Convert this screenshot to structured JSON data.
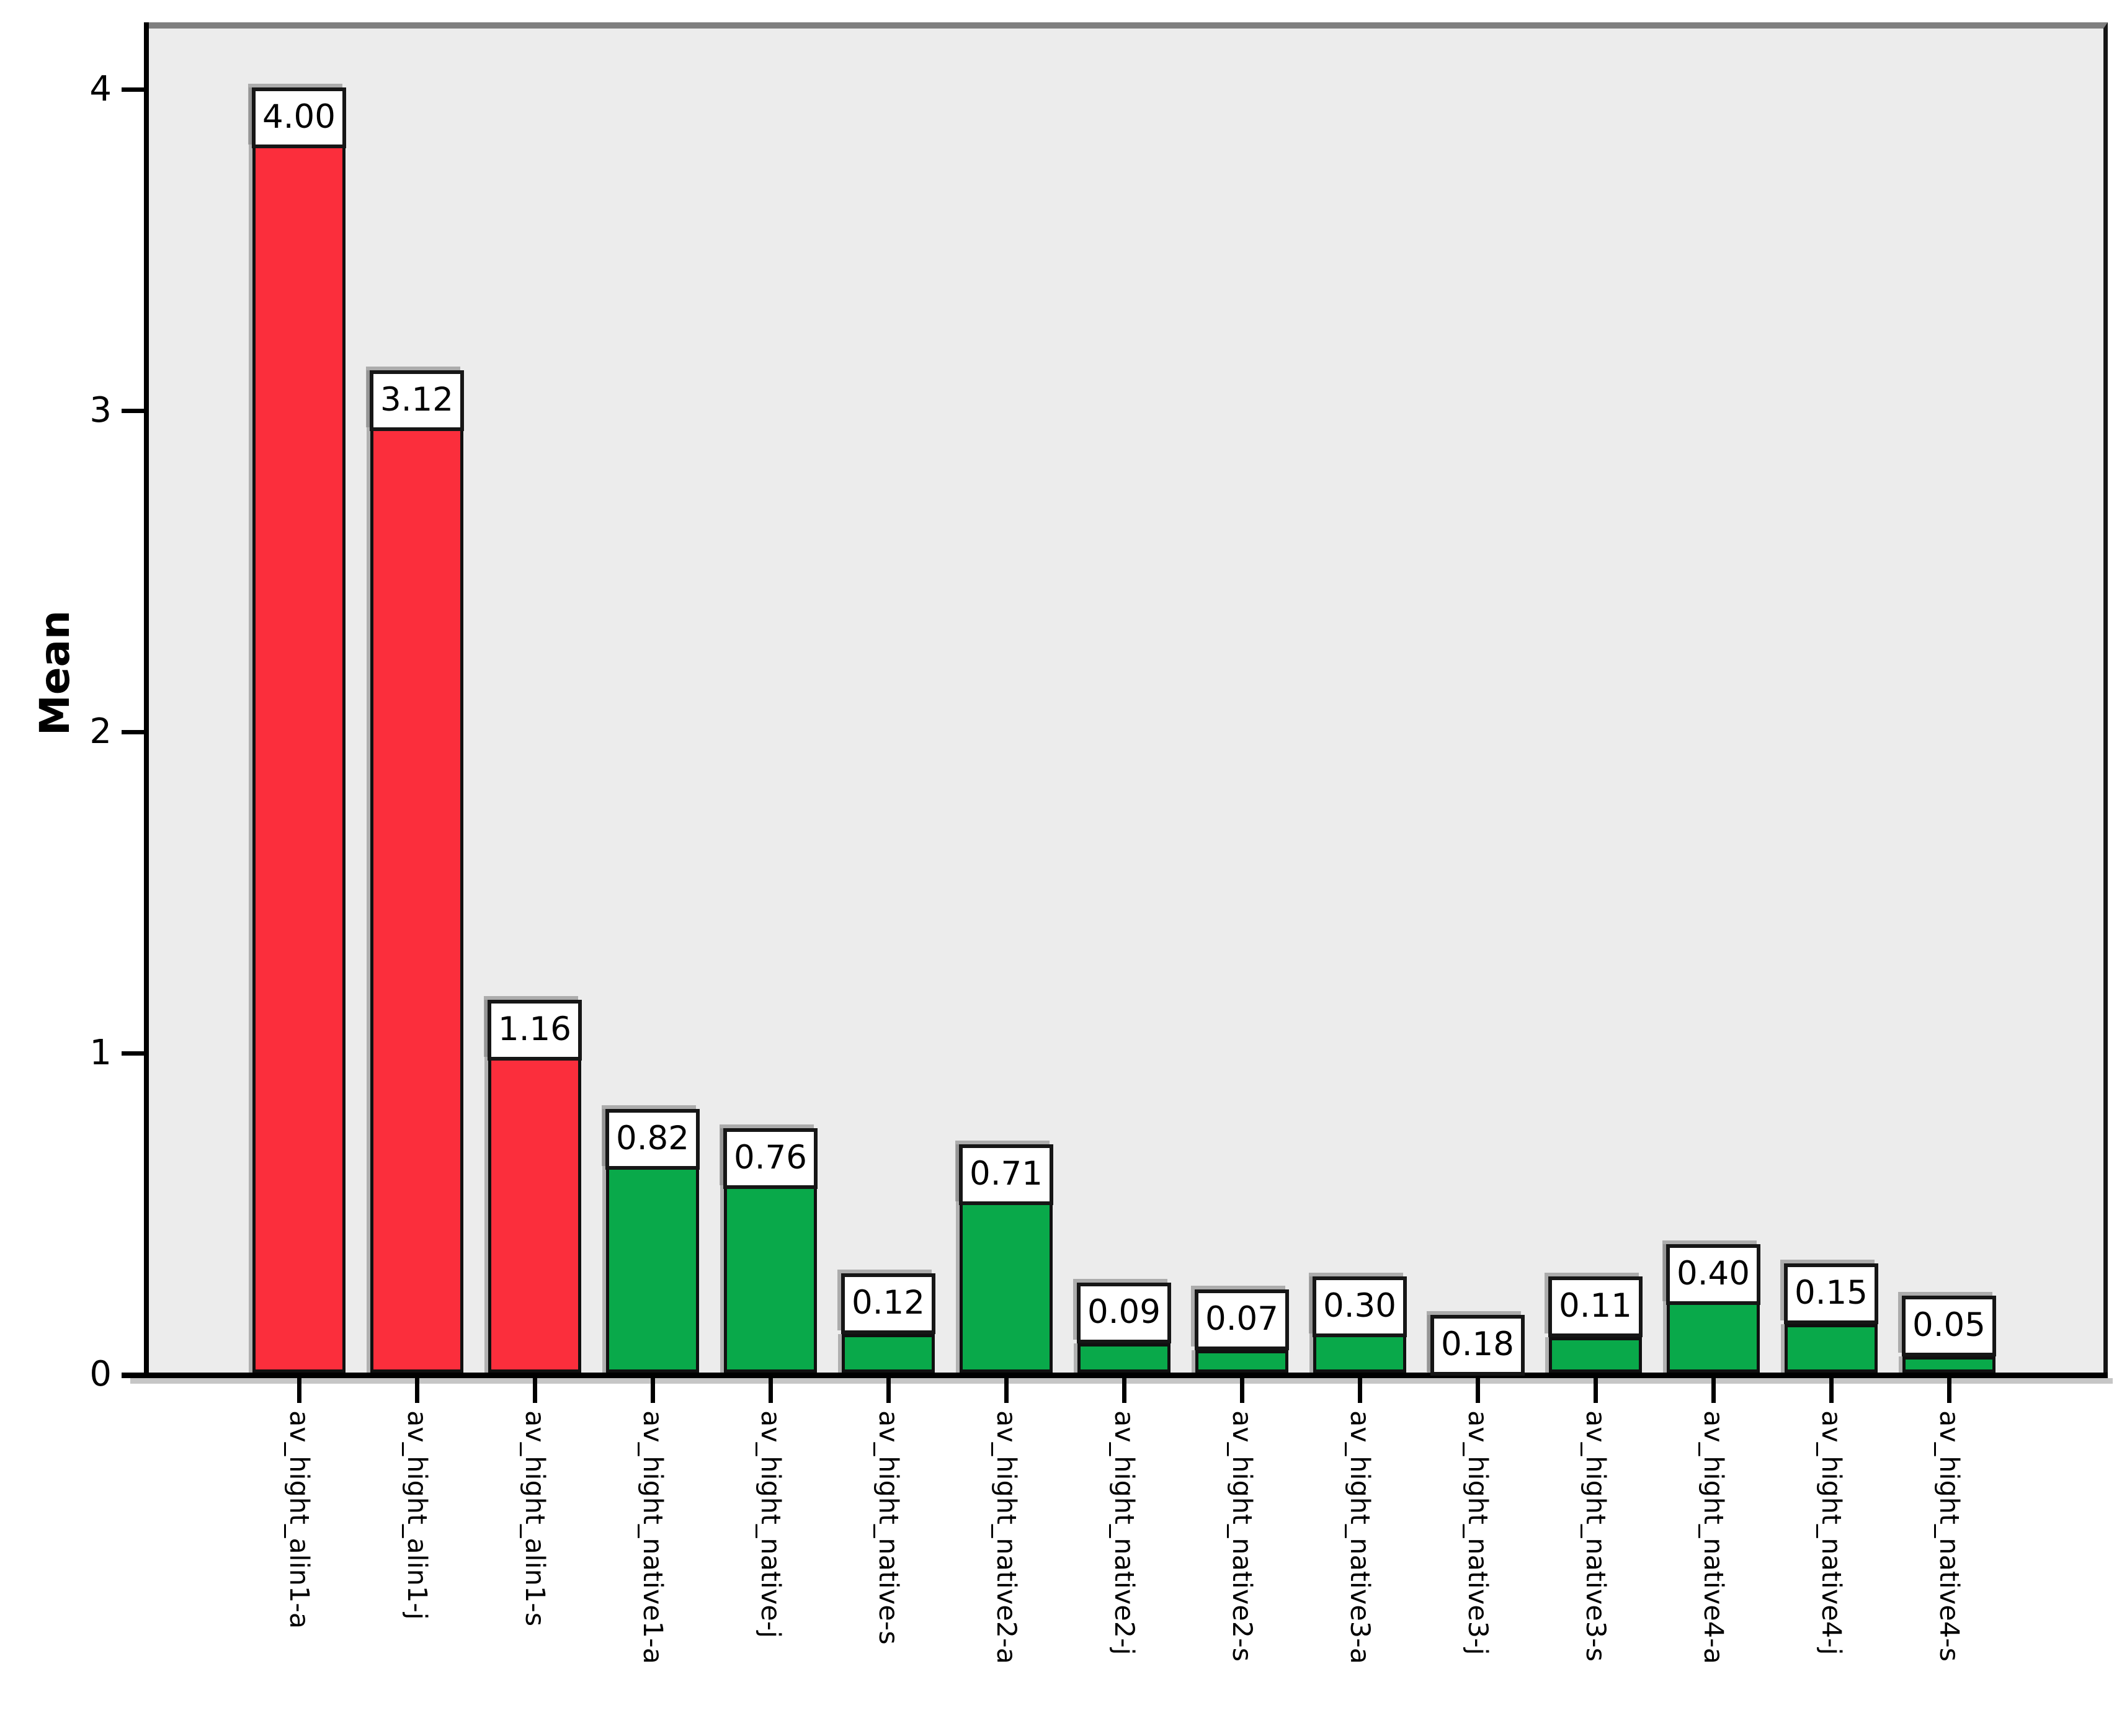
{
  "chart_data": {
    "type": "bar",
    "title": "",
    "xlabel": "",
    "ylabel": "Mean",
    "ylim": [
      0,
      4.2
    ],
    "yticks": [
      0,
      1,
      2,
      3,
      4
    ],
    "grid": false,
    "legend": "none",
    "plot_background": "#ececec",
    "categories": [
      "av_hight_alin1-a",
      "av_hight_alin1-j",
      "av_hight_alin1-s",
      "av_hight_native1-a",
      "av_hight_native-j",
      "av_hight_native-s",
      "av_hight_native2-a",
      "av_hight_native2-j",
      "av_hight_native2-s",
      "av_hight_native3-a",
      "av_hight_native3-j",
      "av_hight_native3-s",
      "av_hight_native4-a",
      "av_hight_native4-j",
      "av_hight_native4-s"
    ],
    "values": [
      4.0,
      3.12,
      1.16,
      0.82,
      0.76,
      0.12,
      0.71,
      0.09,
      0.07,
      0.3,
      0.18,
      0.11,
      0.4,
      0.15,
      0.05
    ],
    "value_labels": [
      "4.00",
      "3.12",
      "1.16",
      "0.82",
      "0.76",
      "0.12",
      "0.71",
      "0.09",
      "0.07",
      "0.30",
      "0.18",
      "0.11",
      "0.40",
      "0.15",
      "0.05"
    ],
    "bar_colors": [
      "#fb2e3c",
      "#fb2e3c",
      "#fb2e3c",
      "#09a94a",
      "#09a94a",
      "#09a94a",
      "#09a94a",
      "#09a94a",
      "#09a94a",
      "#09a94a",
      "#09a94a",
      "#09a94a",
      "#09a94a",
      "#09a94a",
      "#09a94a"
    ],
    "colors": {
      "alin_red": "#fb2e3c",
      "native_green": "#09a94a",
      "label_box_bg": "#ffffff",
      "axis_black": "#000000",
      "frame_gray": "#7f7f7f"
    }
  }
}
